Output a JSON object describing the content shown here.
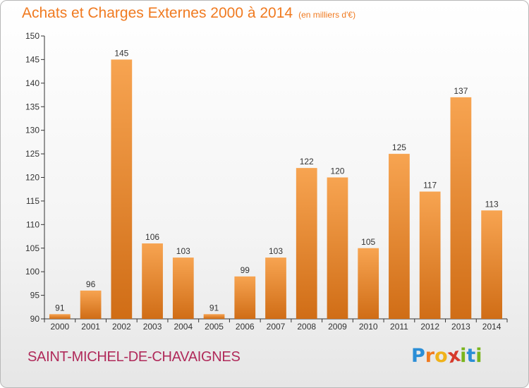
{
  "title": "Achats et Charges Externes 2000 à 2014",
  "subtitle": "(en milliers d'€)",
  "commune": "SAINT-MICHEL-DE-CHAVAIGNES",
  "logo": {
    "letters": [
      "P",
      "r",
      "o",
      "x",
      "i",
      "t",
      "i"
    ],
    "colors": [
      "#2b8ed6",
      "#f07a20",
      "#f0b21a",
      "#d63a2b",
      "#7ab51d",
      "#2b8ed6",
      "#7ab51d"
    ]
  },
  "colors": {
    "bar": "#f3953a",
    "bar_dark": "#d06d16",
    "axis": "#333333",
    "grid": "#d0d0d0"
  },
  "chart_data": {
    "type": "bar",
    "categories": [
      "2000",
      "2001",
      "2002",
      "2003",
      "2004",
      "2005",
      "2006",
      "2007",
      "2008",
      "2009",
      "2010",
      "2011",
      "2012",
      "2013",
      "2014"
    ],
    "values": [
      91,
      96,
      145,
      106,
      103,
      91,
      99,
      103,
      122,
      120,
      105,
      125,
      117,
      137,
      113
    ],
    "ylim": [
      90,
      150
    ],
    "yticks": [
      90,
      95,
      100,
      105,
      110,
      115,
      120,
      125,
      130,
      135,
      140,
      145,
      150
    ],
    "grid": false
  }
}
